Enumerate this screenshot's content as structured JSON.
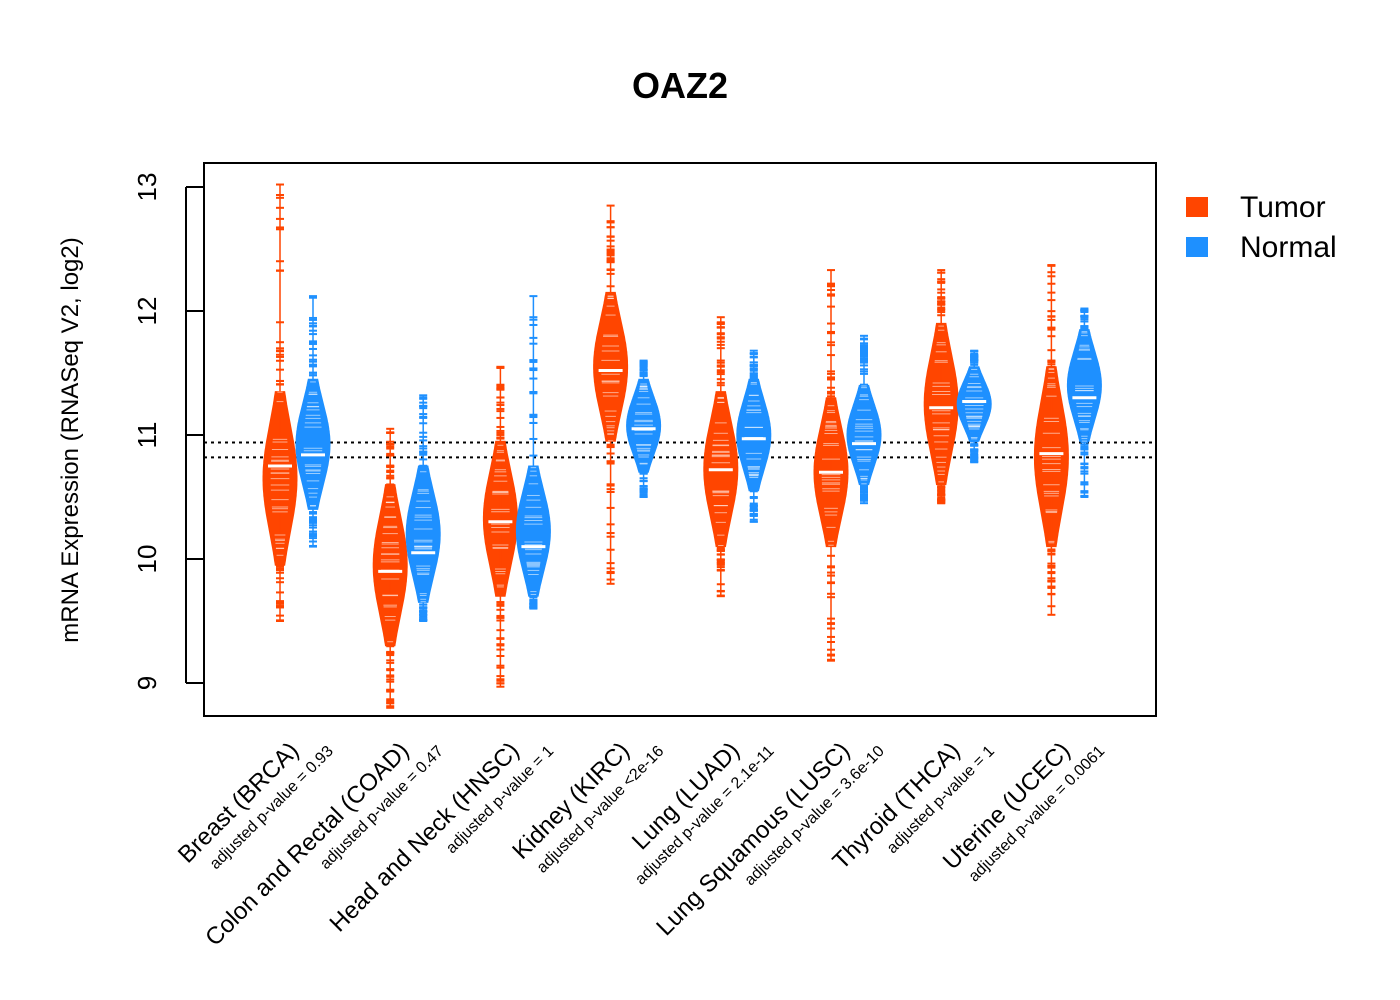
{
  "chart_data": {
    "type": "violin",
    "title": "OAZ2",
    "ylabel": "mRNA Expression (RNASeq V2, log2)",
    "xlabel": "",
    "ylim": [
      8.75,
      13.2
    ],
    "yticks": [
      9,
      10,
      11,
      12,
      13
    ],
    "reference_lines": [
      10.82,
      10.94
    ],
    "grid": false,
    "legend_position": "top-right outside",
    "colors": {
      "Tumor": "#FF4500",
      "Normal": "#1E90FF",
      "median_line": "#ffffff",
      "reference_line": "#000000"
    },
    "legend": [
      {
        "name": "Tumor",
        "color": "#FF4500"
      },
      {
        "name": "Normal",
        "color": "#1E90FF"
      }
    ],
    "categories": [
      {
        "name": "Breast (BRCA)",
        "pvalue": "adjusted p-value = 0.93",
        "tumor": {
          "median": 10.75,
          "min": 9.5,
          "max": 13.02,
          "core_low": 9.95,
          "core_high": 11.35
        },
        "normal": {
          "median": 10.84,
          "min": 10.1,
          "max": 12.12,
          "core_low": 10.4,
          "core_high": 11.45
        }
      },
      {
        "name": "Colon and Rectal (COAD)",
        "pvalue": "adjusted p-value = 0.47",
        "tumor": {
          "median": 9.9,
          "min": 8.8,
          "max": 11.05,
          "core_low": 9.3,
          "core_high": 10.6
        },
        "normal": {
          "median": 10.05,
          "min": 9.5,
          "max": 11.32,
          "core_low": 9.65,
          "core_high": 10.75
        }
      },
      {
        "name": "Head and Neck (HNSC)",
        "pvalue": "adjusted p-value = 1",
        "tumor": {
          "median": 10.3,
          "min": 8.97,
          "max": 11.55,
          "core_low": 9.7,
          "core_high": 10.95
        },
        "normal": {
          "median": 10.1,
          "min": 9.6,
          "max": 12.12,
          "core_low": 9.7,
          "core_high": 10.75
        }
      },
      {
        "name": "Kidney (KIRC)",
        "pvalue": "adjusted p-value <2e-16",
        "tumor": {
          "median": 11.52,
          "min": 9.8,
          "max": 12.85,
          "core_low": 10.95,
          "core_high": 12.15
        },
        "normal": {
          "median": 11.05,
          "min": 10.5,
          "max": 11.6,
          "core_low": 10.7,
          "core_high": 11.45
        }
      },
      {
        "name": "Lung (LUAD)",
        "pvalue": "adjusted p-value = 2.1e-11",
        "tumor": {
          "median": 10.72,
          "min": 9.7,
          "max": 11.95,
          "core_low": 10.1,
          "core_high": 11.35
        },
        "normal": {
          "median": 10.97,
          "min": 10.3,
          "max": 11.68,
          "core_low": 10.55,
          "core_high": 11.45
        }
      },
      {
        "name": "Lung Squamous (LUSC)",
        "pvalue": "adjusted p-value = 3.6e-10",
        "tumor": {
          "median": 10.7,
          "min": 9.18,
          "max": 12.33,
          "core_low": 10.1,
          "core_high": 11.3
        },
        "normal": {
          "median": 10.93,
          "min": 10.45,
          "max": 11.8,
          "core_low": 10.6,
          "core_high": 11.4
        }
      },
      {
        "name": "Thyroid (THCA)",
        "pvalue": "adjusted p-value = 1",
        "tumor": {
          "median": 11.22,
          "min": 10.45,
          "max": 12.33,
          "core_low": 10.6,
          "core_high": 11.9
        },
        "normal": {
          "median": 11.27,
          "min": 10.78,
          "max": 11.68,
          "core_low": 10.95,
          "core_high": 11.55
        }
      },
      {
        "name": "Uterine (UCEC)",
        "pvalue": "adjusted p-value = 0.0061",
        "tumor": {
          "median": 10.85,
          "min": 9.55,
          "max": 12.37,
          "core_low": 10.1,
          "core_high": 11.55
        },
        "normal": {
          "median": 11.3,
          "min": 10.5,
          "max": 12.02,
          "core_low": 10.95,
          "core_high": 11.85
        }
      }
    ]
  }
}
